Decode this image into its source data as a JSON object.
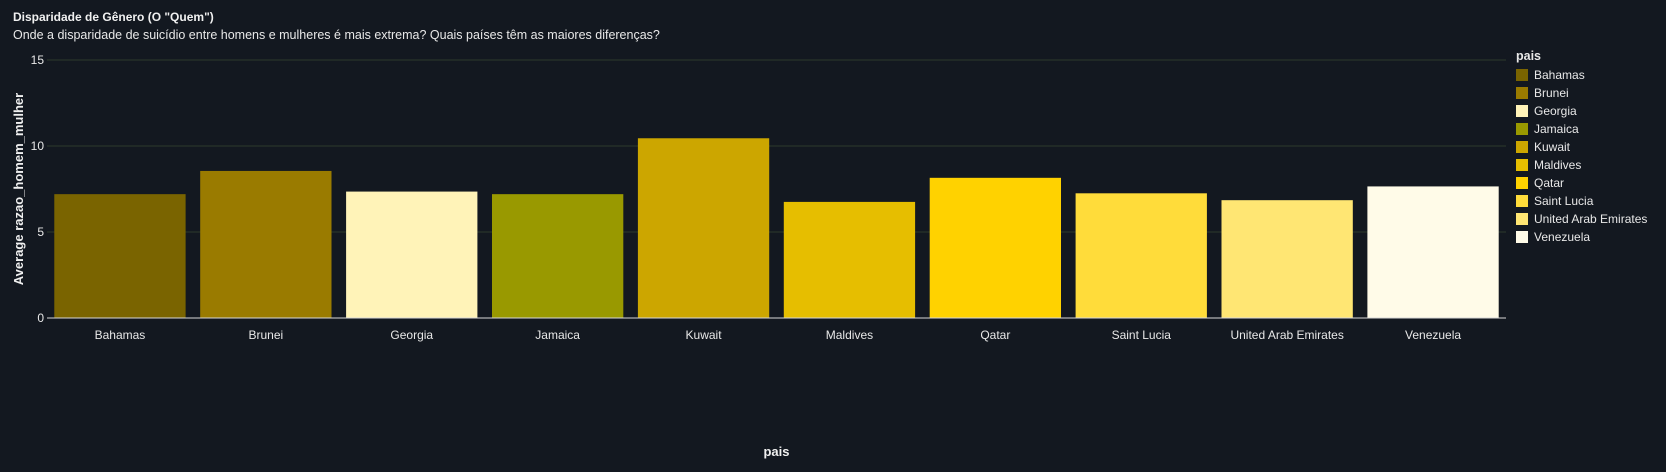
{
  "header": {
    "title": "Disparidade de Gênero (O \"Quem\")",
    "subtitle": "Onde a disparidade de suicídio entre homens e mulheres é mais extrema? Quais países têm as maiores diferenças?"
  },
  "chart_data": {
    "type": "bar",
    "title": "Disparidade de Gênero (O \"Quem\")",
    "subtitle": "Onde a disparidade de suicídio entre homens e mulheres é mais extrema? Quais países têm as maiores diferenças?",
    "xlabel": "pais",
    "ylabel": "Average razao_homem_mulher",
    "ylim": [
      0,
      15
    ],
    "yticks": [
      0,
      5,
      10,
      15
    ],
    "grid": true,
    "legend_title": "pais",
    "legend_position": "right",
    "categories": [
      "Bahamas",
      "Brunei",
      "Georgia",
      "Jamaica",
      "Kuwait",
      "Maldives",
      "Qatar",
      "Saint Lucia",
      "United Arab Emirates",
      "Venezuela"
    ],
    "values": [
      7.2,
      8.55,
      7.35,
      7.2,
      10.45,
      6.75,
      8.15,
      7.25,
      6.85,
      7.65
    ],
    "colors": [
      "#7a6400",
      "#9a7b00",
      "#fff3b8",
      "#999900",
      "#cca600",
      "#e6be00",
      "#ffd200",
      "#ffdc3a",
      "#ffe673",
      "#fffbe8"
    ]
  }
}
